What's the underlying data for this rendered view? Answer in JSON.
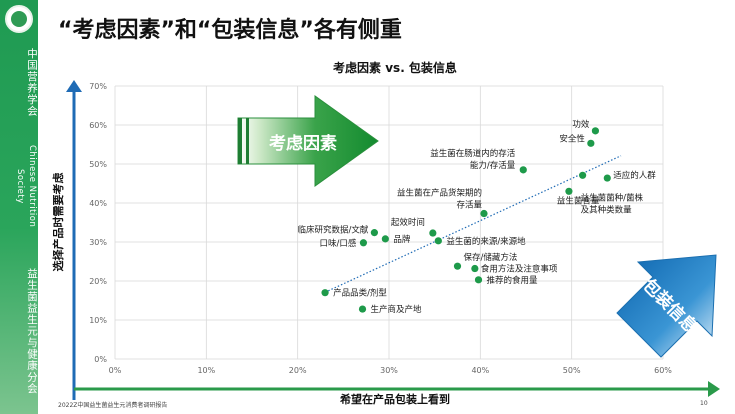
{
  "sidebar": {
    "org_cn": "中国营养学会",
    "org_en": "Chinese Nutrition Society",
    "branch_cn": "益生菌益生元与健康分会"
  },
  "page": {
    "title": "“考虑因素”和“包装信息”各有侧重",
    "footer_left": "2022Z中国益生菌益生元消费者调研报告",
    "page_number": "10"
  },
  "colors": {
    "accent_green": "#1f9a52",
    "point_green": "#1e9a4a",
    "trend_blue": "#1f6bb5",
    "arrow_blue": "#1b7dc3"
  },
  "annotations": {
    "arrow_up_label": "考虑因素",
    "arrow_down_label": "包装信息"
  },
  "chart_data": {
    "type": "scatter",
    "title": "考虑因素 vs. 包装信息",
    "xlabel": "希望在产品包装上看到",
    "ylabel": "选择产品时需要考虑",
    "xlim": [
      0,
      0.6
    ],
    "ylim": [
      0,
      0.7
    ],
    "x_ticks": [
      "0%",
      "10%",
      "20%",
      "30%",
      "40%",
      "50%",
      "60%"
    ],
    "y_ticks": [
      "0%",
      "10%",
      "20%",
      "30%",
      "40%",
      "50%",
      "60%",
      "70%"
    ],
    "grid": true,
    "trendline": true,
    "points": [
      {
        "label": "功效",
        "x": 0.526,
        "y": 0.585
      },
      {
        "label": "安全性",
        "x": 0.521,
        "y": 0.553
      },
      {
        "label": "益生菌在肠道内的存活能力/存活量",
        "x": 0.447,
        "y": 0.485
      },
      {
        "label": "适应的人群",
        "x": 0.539,
        "y": 0.464
      },
      {
        "label": "益生菌菌种/菌株及其种类数量",
        "x": 0.512,
        "y": 0.471
      },
      {
        "label": "益生菌在产品货架期的存活量",
        "x": 0.404,
        "y": 0.373
      },
      {
        "label": "益生菌含量",
        "x": 0.497,
        "y": 0.43
      },
      {
        "label": "起效时间",
        "x": 0.348,
        "y": 0.323
      },
      {
        "label": "临床研究数据/文献",
        "x": 0.284,
        "y": 0.324
      },
      {
        "label": "品牌",
        "x": 0.296,
        "y": 0.308
      },
      {
        "label": "口味/口感",
        "x": 0.272,
        "y": 0.298
      },
      {
        "label": "益生菌的来源/来源地",
        "x": 0.354,
        "y": 0.303
      },
      {
        "label": "保存/储藏方法",
        "x": 0.375,
        "y": 0.238
      },
      {
        "label": "食用方法及注意事项",
        "x": 0.394,
        "y": 0.232
      },
      {
        "label": "推荐的食用量",
        "x": 0.398,
        "y": 0.203
      },
      {
        "label": "产品品类/剂型",
        "x": 0.23,
        "y": 0.17
      },
      {
        "label": "生产商及产地",
        "x": 0.271,
        "y": 0.128
      }
    ]
  }
}
